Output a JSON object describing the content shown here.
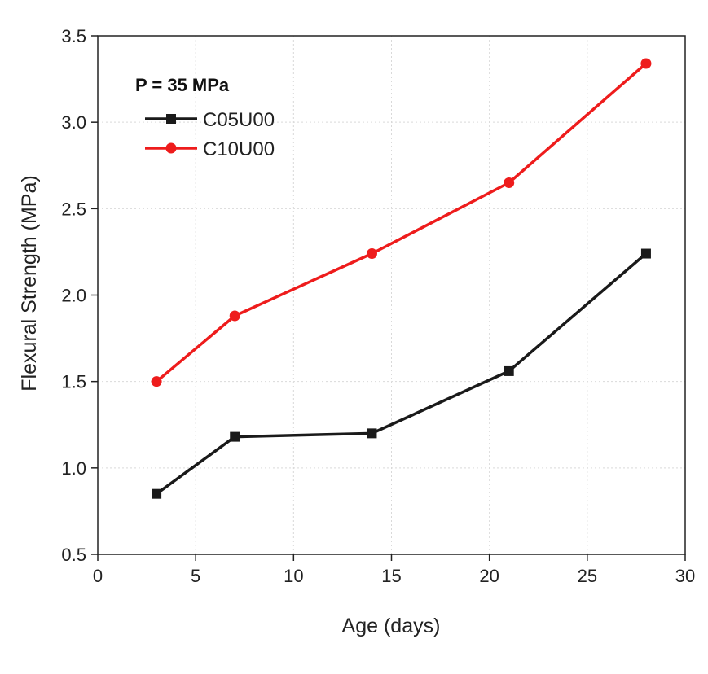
{
  "chart_data": {
    "type": "line",
    "title": "",
    "xlabel": "Age (days)",
    "ylabel": "Flexural Strength (MPa)",
    "xlim": [
      0,
      30
    ],
    "ylim": [
      0.5,
      3.5
    ],
    "xticks": [
      0,
      5,
      10,
      15,
      20,
      25,
      30
    ],
    "yticks": [
      "0.5",
      "1.0",
      "1.5",
      "2.0",
      "2.5",
      "3.0",
      "3.5"
    ],
    "grid": true,
    "legend_title": "P = 35 MPa",
    "legend_position": "top-left",
    "x": [
      3,
      7,
      14,
      21,
      28
    ],
    "series": [
      {
        "name": "C05U00",
        "values": [
          0.85,
          1.18,
          1.2,
          1.56,
          2.24
        ],
        "color": "#1a1a1a",
        "marker": "square"
      },
      {
        "name": "C10U00",
        "values": [
          1.5,
          1.88,
          2.24,
          2.65,
          3.34
        ],
        "color": "#ee1c1c",
        "marker": "circle"
      }
    ]
  }
}
